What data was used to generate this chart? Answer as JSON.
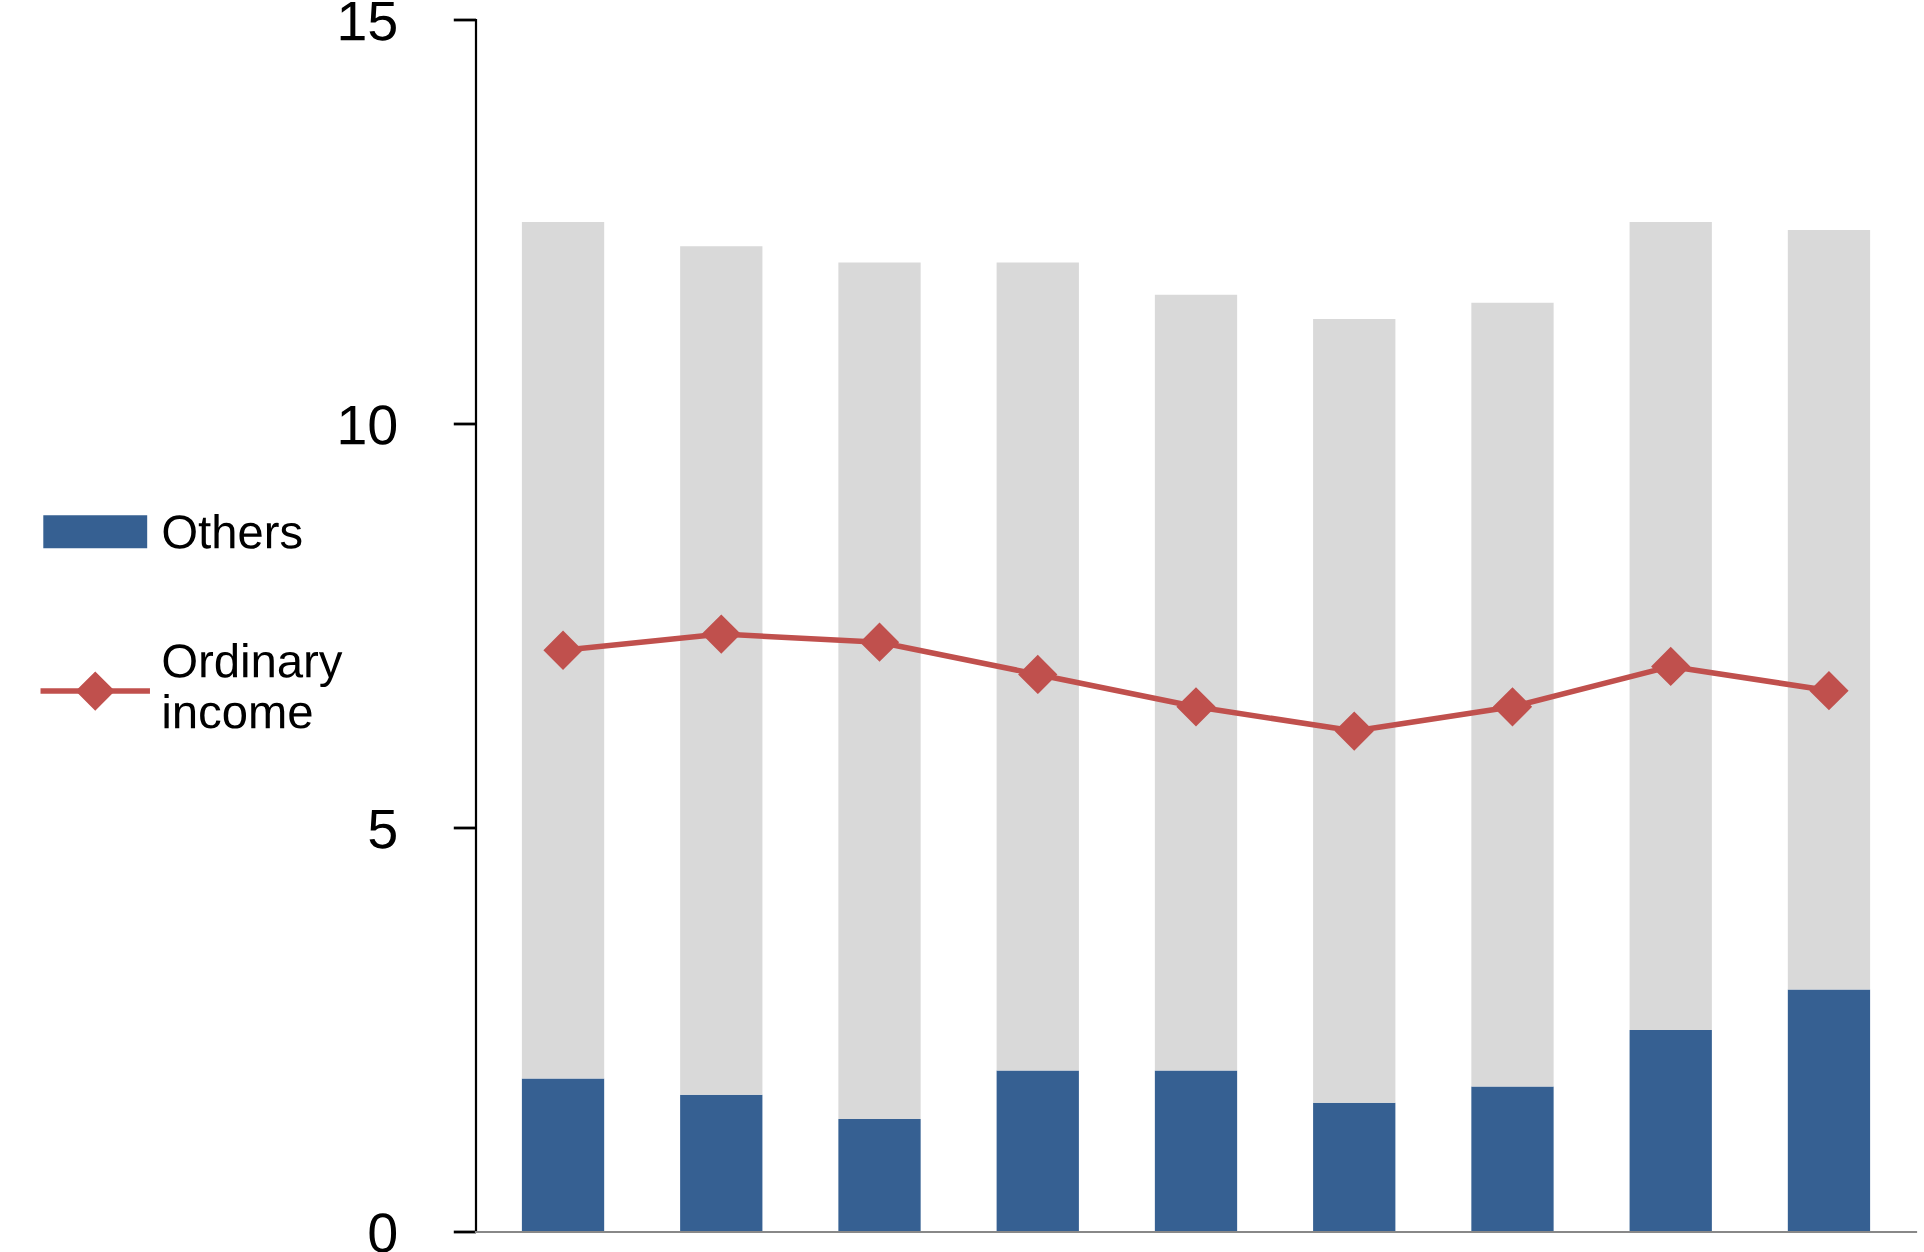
{
  "chart_data": {
    "type": "bar",
    "stacked": true,
    "categories": [
      null,
      null,
      null,
      null,
      null,
      null,
      null,
      null,
      null
    ],
    "series": [
      {
        "name": "Others",
        "color": "#366092",
        "values": [
          1.9,
          1.7,
          1.4,
          2.0,
          2.0,
          1.6,
          1.8,
          2.5,
          3.0
        ]
      },
      {
        "color": "#d9d9d9",
        "values": [
          10.6,
          10.5,
          10.6,
          10.0,
          9.6,
          9.7,
          9.7,
          10.0,
          9.4
        ]
      },
      {
        "name": "Ordinary\nincome",
        "type": "line",
        "color": "#c0504d",
        "marker": "diamond",
        "values": [
          7.2,
          7.4,
          7.3,
          6.9,
          6.5,
          6.2,
          6.5,
          7.0,
          6.7
        ]
      }
    ],
    "ylim": [
      0,
      15
    ],
    "yticks": [
      0,
      5,
      10,
      15
    ],
    "grid": false,
    "legend": "left"
  }
}
